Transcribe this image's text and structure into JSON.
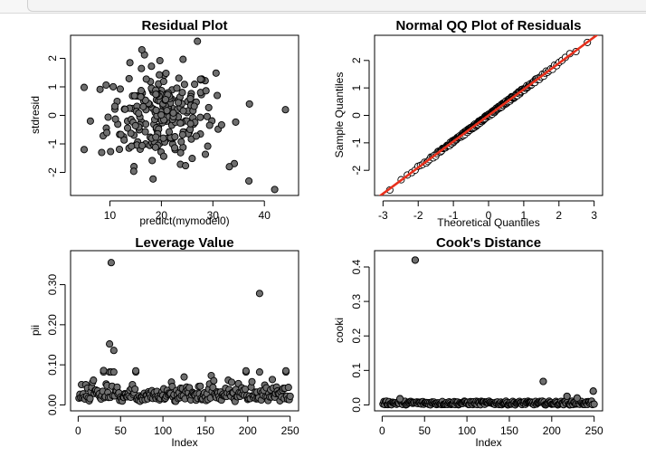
{
  "chart_data": [
    {
      "type": "scatter",
      "title": "Residual Plot",
      "xlabel": "predict(mymodel0)",
      "ylabel": "stdresid",
      "xlim": [
        4,
        45
      ],
      "ylim": [
        -2.6,
        2.6
      ],
      "xticks": [
        10,
        20,
        30,
        40
      ],
      "yticks": [
        -2,
        -1,
        0,
        1,
        2
      ],
      "n_points": 250,
      "points": [
        [
          44.1,
          0.2
        ],
        [
          42.0,
          -2.6
        ],
        [
          37.1,
          0.4
        ],
        [
          37.0,
          -2.3
        ],
        [
          33.2,
          -1.8
        ],
        [
          27.0,
          2.6
        ],
        [
          5.0,
          -1.2
        ],
        [
          6.2,
          -0.2
        ],
        [
          8.4,
          -1.3
        ],
        [
          16.2,
          2.3
        ]
      ]
    },
    {
      "type": "scatter",
      "title": "Normal QQ Plot of Residuals",
      "xlabel": "Theoretical Quantiles",
      "ylabel": "Sample Quantiles",
      "xlim": [
        -3,
        3
      ],
      "ylim": [
        -2.7,
        2.7
      ],
      "xticks": [
        -3,
        -2,
        -1,
        0,
        1,
        2,
        3
      ],
      "yticks": [
        -2,
        -1,
        0,
        1,
        2
      ],
      "reference_line": {
        "slope": 0.95,
        "intercept": 0.0,
        "color": "#e8301c"
      },
      "n_points": 250
    },
    {
      "type": "scatter",
      "title": "Leverage Value",
      "xlabel": "Index",
      "ylabel": "pii",
      "xlim": [
        1,
        250
      ],
      "ylim": [
        0.0,
        0.37
      ],
      "xticks": [
        0,
        50,
        100,
        150,
        200,
        250
      ],
      "yticks": [
        0.0,
        0.1,
        0.2,
        0.3
      ],
      "ytick_labels": [
        "0.00",
        "0.10",
        "0.20",
        "0.30"
      ],
      "n_points": 250,
      "outliers": [
        [
          39,
          0.355
        ],
        [
          214,
          0.278
        ],
        [
          37,
          0.152
        ],
        [
          42,
          0.136
        ],
        [
          30,
          0.086
        ],
        [
          68,
          0.085
        ],
        [
          198,
          0.085
        ],
        [
          245,
          0.085
        ]
      ]
    },
    {
      "type": "scatter",
      "title": "Cook's Distance",
      "xlabel": "Index",
      "ylabel": "cooki",
      "xlim": [
        1,
        250
      ],
      "ylim": [
        0.0,
        0.43
      ],
      "xticks": [
        0,
        50,
        100,
        150,
        200,
        250
      ],
      "yticks": [
        0.0,
        0.1,
        0.2,
        0.3,
        0.4
      ],
      "ytick_labels": [
        "0.0",
        "0.1",
        "0.2",
        "0.3",
        "0.4"
      ],
      "n_points": 250,
      "outliers": [
        [
          39,
          0.42
        ],
        [
          190,
          0.068
        ],
        [
          249,
          0.04
        ],
        [
          218,
          0.025
        ],
        [
          21,
          0.018
        ],
        [
          230,
          0.02
        ]
      ]
    }
  ],
  "colors": {
    "point_fill": "#6e6e6e",
    "point_stroke": "#000000",
    "qq_point_fill": "#ffffff",
    "qq_line": "#e8301c"
  }
}
